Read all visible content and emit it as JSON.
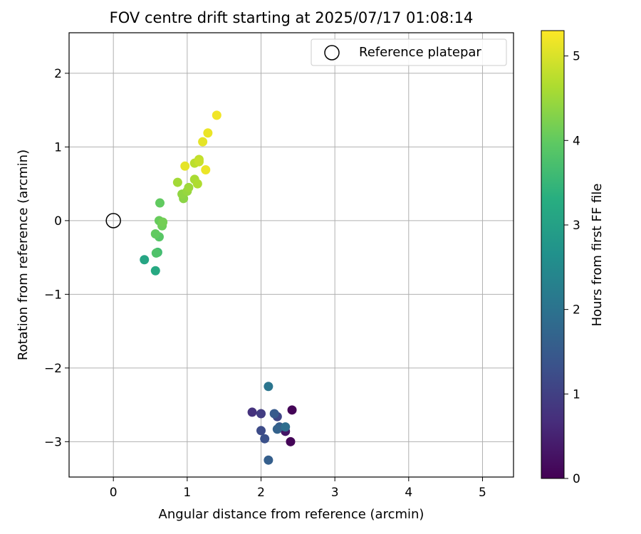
{
  "chart_data": {
    "type": "scatter",
    "title": "FOV centre drift starting at 2025/07/17 01:08:14",
    "xlabel": "Angular distance from reference (arcmin)",
    "ylabel": "Rotation from reference (arcmin)",
    "xlim": [
      -0.6,
      5.42
    ],
    "ylim": [
      -3.48,
      2.55
    ],
    "xticks": [
      0,
      1,
      2,
      3,
      4,
      5
    ],
    "xtick_labels": [
      "0",
      "1",
      "2",
      "3",
      "4",
      "5"
    ],
    "yticks": [
      -3,
      -2,
      -1,
      0,
      1,
      2
    ],
    "ytick_labels": [
      "−3",
      "−2",
      "−1",
      "0",
      "1",
      "2"
    ],
    "grid": true,
    "legend": {
      "position": "upper-right",
      "entries": [
        "Reference platepar"
      ]
    },
    "reference_point": {
      "name": "Reference platepar",
      "x": 0,
      "y": 0,
      "marker": "open-circle"
    },
    "colorbar": {
      "label": "Hours from first FF file",
      "colormap": "viridis",
      "range": [
        0,
        5.3
      ],
      "ticks": [
        0,
        1,
        2,
        3,
        4,
        5
      ],
      "tick_labels": [
        "0",
        "1",
        "2",
        "3",
        "4",
        "5"
      ]
    },
    "points": [
      {
        "x": 2.42,
        "y": -2.57,
        "t": 0.05
      },
      {
        "x": 2.4,
        "y": -3.0,
        "t": 0.05
      },
      {
        "x": 2.33,
        "y": -2.86,
        "t": 0.3
      },
      {
        "x": 1.88,
        "y": -2.6,
        "t": 0.75
      },
      {
        "x": 2.0,
        "y": -2.62,
        "t": 0.95
      },
      {
        "x": 2.22,
        "y": -2.66,
        "t": 1.1
      },
      {
        "x": 2.0,
        "y": -2.85,
        "t": 1.2
      },
      {
        "x": 2.05,
        "y": -2.96,
        "t": 1.3
      },
      {
        "x": 2.18,
        "y": -2.62,
        "t": 1.5
      },
      {
        "x": 2.25,
        "y": -2.8,
        "t": 1.55
      },
      {
        "x": 2.22,
        "y": -2.83,
        "t": 1.65
      },
      {
        "x": 2.1,
        "y": -3.25,
        "t": 1.6
      },
      {
        "x": 2.33,
        "y": -2.8,
        "t": 1.9
      },
      {
        "x": 2.1,
        "y": -2.25,
        "t": 2.05
      },
      {
        "x": 0.42,
        "y": -0.53,
        "t": 3.1
      },
      {
        "x": 0.57,
        "y": -0.68,
        "t": 3.2
      },
      {
        "x": 0.6,
        "y": -0.43,
        "t": 3.6
      },
      {
        "x": 0.58,
        "y": -0.44,
        "t": 3.8
      },
      {
        "x": 0.62,
        "y": -0.22,
        "t": 3.9
      },
      {
        "x": 0.57,
        "y": -0.18,
        "t": 4.0
      },
      {
        "x": 0.63,
        "y": 0.24,
        "t": 4.0
      },
      {
        "x": 0.62,
        "y": 0.0,
        "t": 4.05
      },
      {
        "x": 0.66,
        "y": -0.07,
        "t": 4.1
      },
      {
        "x": 0.67,
        "y": -0.02,
        "t": 4.15
      },
      {
        "x": 0.95,
        "y": 0.3,
        "t": 4.35
      },
      {
        "x": 0.93,
        "y": 0.36,
        "t": 4.4
      },
      {
        "x": 1.0,
        "y": 0.4,
        "t": 4.45
      },
      {
        "x": 1.02,
        "y": 0.45,
        "t": 4.5
      },
      {
        "x": 0.87,
        "y": 0.52,
        "t": 4.55
      },
      {
        "x": 1.1,
        "y": 0.56,
        "t": 4.6
      },
      {
        "x": 1.14,
        "y": 0.5,
        "t": 4.65
      },
      {
        "x": 1.1,
        "y": 0.78,
        "t": 4.75
      },
      {
        "x": 1.16,
        "y": 0.83,
        "t": 4.8
      },
      {
        "x": 1.16,
        "y": 0.8,
        "t": 4.85
      },
      {
        "x": 0.97,
        "y": 0.74,
        "t": 5.1
      },
      {
        "x": 1.25,
        "y": 0.69,
        "t": 5.15
      },
      {
        "x": 1.21,
        "y": 1.07,
        "t": 5.1
      },
      {
        "x": 1.28,
        "y": 1.19,
        "t": 5.15
      },
      {
        "x": 1.4,
        "y": 1.43,
        "t": 5.2
      }
    ]
  }
}
